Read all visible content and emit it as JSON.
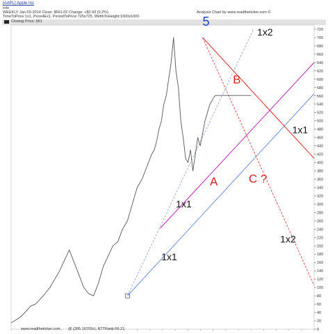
{
  "header": {
    "symbol_link": "[AAPL] Apple Inc",
    "subline": "Info",
    "quote_line": "WEEKLY  Jan-03-2014  Close: $561.02  Change: +$0.93  (0.2%)",
    "params_line": "TimeToPrice:1x1, Price4Ex1, PeriodToPrice:725x725, WidthToHeight:1000x1000",
    "analysis_title": "Analysis Chart by www.readtheticker.com ©",
    "legend_label": "Closing Price: 561"
  },
  "footer": {
    "site": "www.readtheticker.com",
    "info": "@ (395.16703c), RTTRank:66.21"
  },
  "chart_data": {
    "type": "line",
    "title": "",
    "xlabel": "",
    "ylabel": "",
    "ylim": [
      0,
      730
    ],
    "yticks": [
      0,
      20,
      40,
      60,
      80,
      100,
      120,
      140,
      160,
      180,
      200,
      220,
      240,
      260,
      280,
      300,
      320,
      340,
      360,
      380,
      400,
      420,
      440,
      460,
      480,
      500,
      520,
      540,
      560,
      580,
      600,
      620,
      640,
      660,
      680,
      700,
      720
    ],
    "xlim": [
      0,
      250
    ],
    "grid": false,
    "series": [
      {
        "name": "",
        "color": "#555555",
        "x": [
          0,
          4,
          8,
          12,
          16,
          20,
          24,
          28,
          32,
          36,
          40,
          44,
          48,
          52,
          56,
          60,
          64,
          68,
          72,
          76,
          80,
          84,
          88,
          92,
          96,
          100,
          104,
          108,
          112,
          116,
          118,
          120,
          122,
          124,
          126,
          128,
          130,
          132,
          134,
          136,
          138,
          140,
          142,
          144,
          146,
          148,
          150,
          152,
          154,
          156,
          158,
          160,
          162,
          164,
          166,
          168,
          170,
          172,
          174,
          176,
          178,
          180,
          182,
          184,
          186,
          188,
          190,
          192,
          194,
          196,
          198
        ],
        "values": [
          15,
          22,
          30,
          42,
          55,
          60,
          72,
          85,
          100,
          120,
          140,
          165,
          190,
          160,
          130,
          100,
          85,
          80,
          110,
          150,
          175,
          200,
          210,
          240,
          260,
          300,
          340,
          360,
          390,
          420,
          430,
          450,
          480,
          500,
          540,
          560,
          600,
          640,
          700,
          620,
          580,
          500,
          460,
          410,
          400,
          430,
          380,
          420,
          460,
          440,
          470,
          500,
          520,
          540,
          550,
          560,
          561,
          561,
          561,
          561,
          561,
          561,
          561,
          561,
          561,
          561,
          561,
          561,
          561,
          561,
          561
        ]
      }
    ],
    "lines": [
      {
        "name": "fan-1x1-from-low",
        "color": "#6b8fe0",
        "style": "solid",
        "x": [
          96,
          250
        ],
        "values": [
          80,
          565
        ]
      },
      {
        "name": "fan-1x2-from-low",
        "color": "#9ab0e8",
        "style": "dashed",
        "x": [
          96,
          200
        ],
        "values": [
          80,
          720
        ]
      },
      {
        "name": "fan-1x1-from-240",
        "color": "#c020c0",
        "style": "solid",
        "x": [
          123,
          250
        ],
        "values": [
          242,
          640
        ]
      },
      {
        "name": "down-1x1-from-top",
        "color": "#e02020",
        "style": "solid",
        "x": [
          158,
          250
        ],
        "values": [
          700,
          410
        ]
      },
      {
        "name": "down-1x2-from-top",
        "color": "#e05050",
        "style": "dashed",
        "x": [
          158,
          250
        ],
        "values": [
          700,
          105
        ]
      }
    ],
    "annotations": [
      {
        "text": "5",
        "color": "#1a3fd0",
        "size": 18,
        "x": 158,
        "y": 728
      },
      {
        "text": "1x2",
        "color": "#111111",
        "size": 14,
        "x": 203,
        "y": 705
      },
      {
        "text": "B",
        "color": "#e02020",
        "size": 17,
        "x": 183,
        "y": 590
      },
      {
        "text": "1x1",
        "color": "#111111",
        "size": 14,
        "x": 232,
        "y": 470
      },
      {
        "text": "A",
        "color": "#e02020",
        "size": 17,
        "x": 164,
        "y": 345
      },
      {
        "text": "C ?",
        "color": "#e02020",
        "size": 17,
        "x": 196,
        "y": 352
      },
      {
        "text": "1x1",
        "color": "#111111",
        "size": 14,
        "x": 136,
        "y": 292
      },
      {
        "text": "1x2",
        "color": "#111111",
        "size": 14,
        "x": 222,
        "y": 208
      },
      {
        "text": "1x1",
        "color": "#111111",
        "size": 14,
        "x": 124,
        "y": 165
      }
    ],
    "markers": [
      {
        "name": "low-marker",
        "x": 96,
        "y": 80
      }
    ]
  }
}
